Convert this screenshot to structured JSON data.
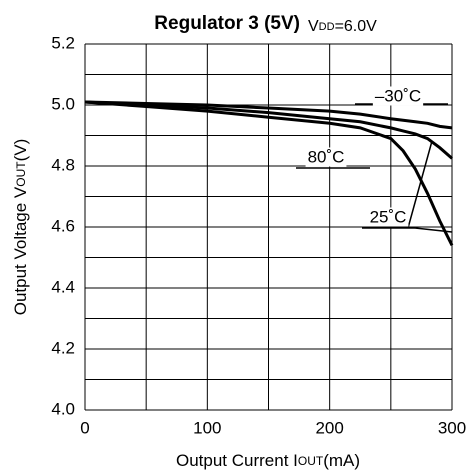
{
  "chart_data": {
    "type": "line",
    "title": "Regulator 3 (5V)",
    "subtitle": {
      "main": "V",
      "sub": "DD",
      "rest": "=6.0V"
    },
    "xlabel": {
      "main": "Output Current I",
      "sub": "OUT",
      "rest": "(mA)"
    },
    "ylabel": {
      "main": "Output Voltage V",
      "sub": "OUT",
      "rest": "(V)"
    },
    "x": [
      0,
      50,
      100,
      150,
      200,
      225,
      250,
      260,
      270,
      280,
      290,
      300
    ],
    "series": [
      {
        "name": "–30˚C",
        "color": "#000000",
        "values": [
          5.01,
          5.005,
          5.0,
          4.99,
          4.98,
          4.97,
          4.955,
          4.95,
          4.945,
          4.94,
          4.93,
          4.925
        ]
      },
      {
        "name": "25˚C",
        "color": "#000000",
        "values": [
          5.01,
          5.0,
          4.99,
          4.975,
          4.955,
          4.945,
          4.925,
          4.915,
          4.905,
          4.89,
          4.86,
          4.825
        ]
      },
      {
        "name": "80˚C",
        "color": "#000000",
        "values": [
          5.01,
          4.995,
          4.98,
          4.96,
          4.94,
          4.925,
          4.89,
          4.85,
          4.79,
          4.71,
          4.62,
          4.54
        ]
      }
    ],
    "xlim": [
      0,
      300
    ],
    "xticks": [
      0,
      100,
      200,
      300
    ],
    "xgrid": [
      0,
      50,
      100,
      150,
      200,
      250,
      300
    ],
    "ylim": [
      4.0,
      5.2
    ],
    "yticks": [
      {
        "value": 4,
        "label": "4.0"
      },
      {
        "value": 4.2,
        "label": "4.2"
      },
      {
        "value": 4.4,
        "label": "4.4"
      },
      {
        "value": 4.6,
        "label": "4.6"
      },
      {
        "value": 4.8,
        "label": "4.8"
      },
      {
        "value": 5,
        "label": "5.0"
      },
      {
        "value": 5.2,
        "label": "5.2"
      }
    ],
    "ygrid": [
      4.0,
      4.1,
      4.2,
      4.3,
      4.4,
      4.5,
      4.6,
      4.7,
      4.8,
      4.9,
      5.0,
      5.1,
      5.2
    ],
    "grid": true
  }
}
